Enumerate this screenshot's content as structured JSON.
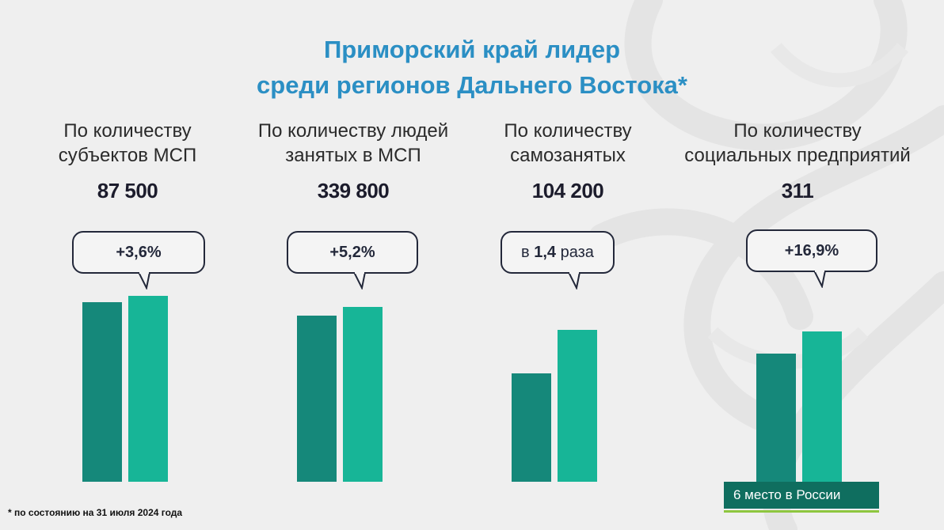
{
  "title": {
    "line1": "Приморский край лидер",
    "line2": "среди регионов Дальнего Востока*"
  },
  "chart_data": [
    {
      "type": "bar",
      "heading_line1": "По количеству",
      "heading_line2": "субъектов МСП",
      "value_label": "87 500",
      "change_label": "+3,6%",
      "categories": [
        "",
        ""
      ],
      "values": [
        94.4,
        97.8
      ]
    },
    {
      "type": "bar",
      "heading_line1": "По количеству людей",
      "heading_line2": "занятых в МСП",
      "value_label": "339 800",
      "change_label": "+5,2%",
      "categories": [
        "",
        ""
      ],
      "values": [
        87.4,
        92.0
      ]
    },
    {
      "type": "bar",
      "heading_line1": "По количеству",
      "heading_line2": "самозанятых",
      "value_label": "104 200",
      "change_prefix": "в",
      "change_number": "1,4",
      "change_suffix": "раза",
      "categories": [
        "",
        ""
      ],
      "values": [
        57.0,
        79.8
      ]
    },
    {
      "type": "bar",
      "heading_line1": "По количеству",
      "heading_line2": "социальных предприятий",
      "value_label": "311",
      "change_label": "+16,9%",
      "categories": [
        "",
        ""
      ],
      "values": [
        67.6,
        79.0
      ]
    }
  ],
  "badge": {
    "text": "6 место в России"
  },
  "footnote": "* по состоянию на 31 июля 2024 года",
  "colors": {
    "title": "#2b8fc4",
    "bar_previous": "#15887a",
    "bar_current": "#17b597",
    "badge_bg": "#0f6e5f",
    "badge_accent": "#8ec63f"
  }
}
